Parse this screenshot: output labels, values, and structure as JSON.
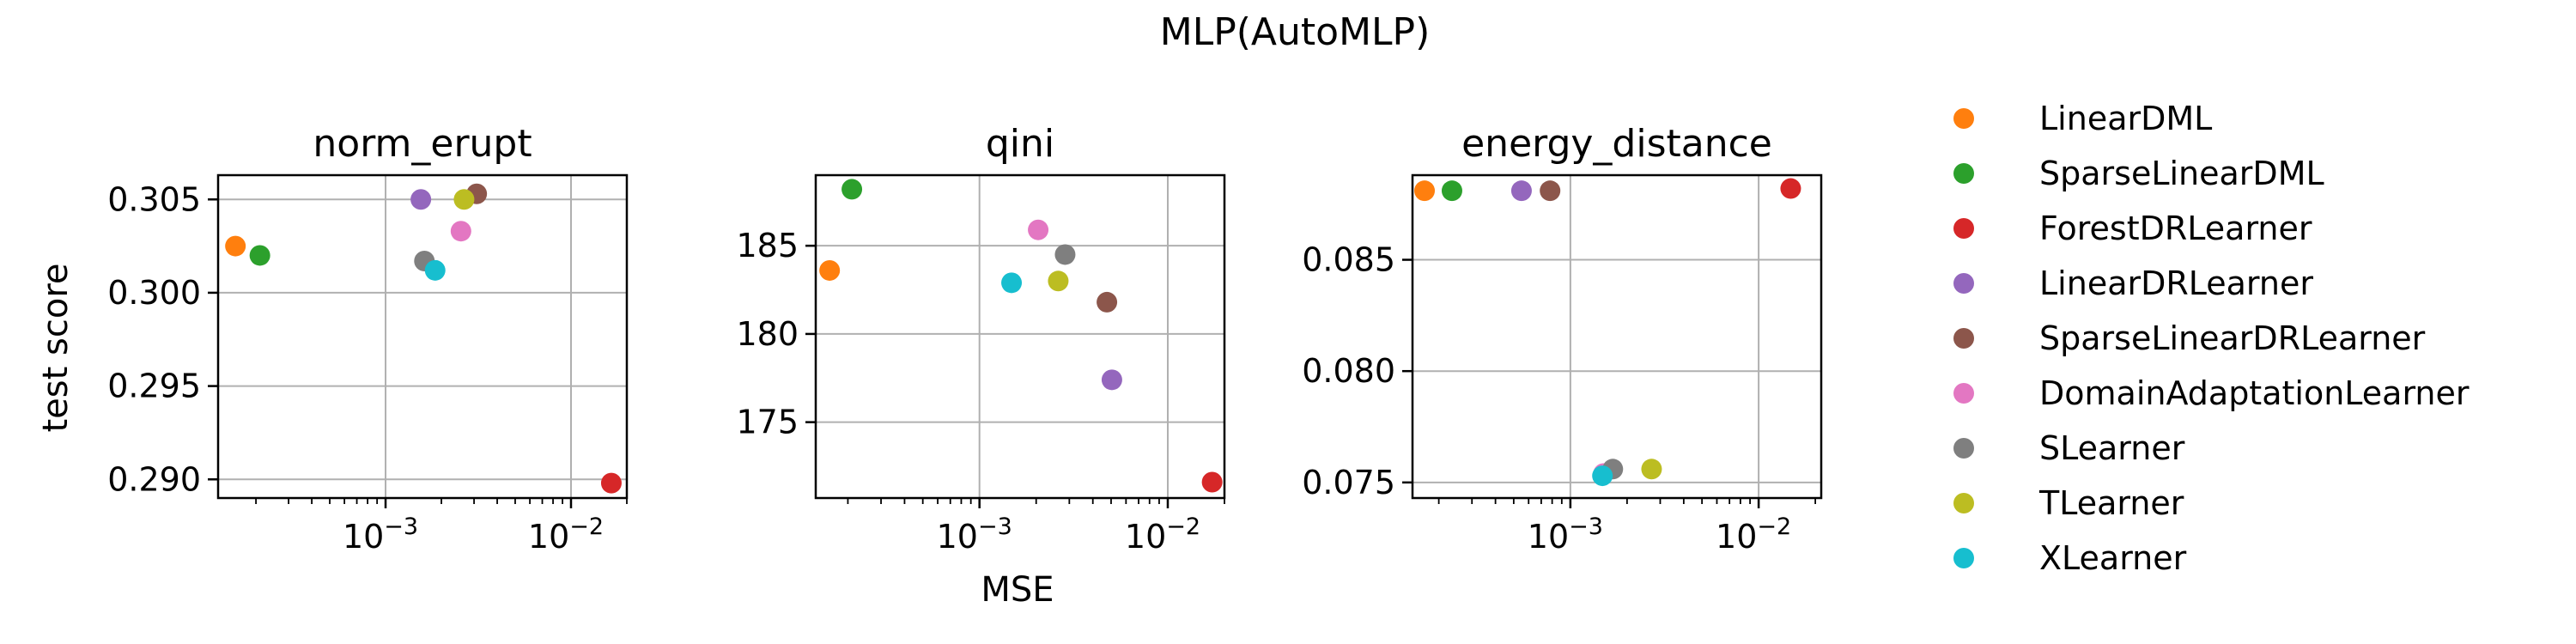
{
  "figure": {
    "suptitle": "MLP(AutoMLP)",
    "shared_xlabel": "MSE",
    "shared_ylabel": "test score"
  },
  "legend": {
    "placement": "right",
    "entries": [
      {
        "name": "LinearDML",
        "color": "#ff7f0e"
      },
      {
        "name": "SparseLinearDML",
        "color": "#2ca02c"
      },
      {
        "name": "ForestDRLearner",
        "color": "#d62728"
      },
      {
        "name": "LinearDRLearner",
        "color": "#9467bd"
      },
      {
        "name": "SparseLinearDRLearner",
        "color": "#8c564b"
      },
      {
        "name": "DomainAdaptationLearner",
        "color": "#e377c2"
      },
      {
        "name": "SLearner",
        "color": "#7f7f7f"
      },
      {
        "name": "TLearner",
        "color": "#bcbd22"
      },
      {
        "name": "XLearner",
        "color": "#17becf"
      }
    ]
  },
  "chart_data": [
    {
      "type": "scatter",
      "title": "norm_erupt",
      "xlabel": "",
      "ylabel": "test score",
      "xscale": "log",
      "xlim": [
        0.000125,
        0.02
      ],
      "ylim": [
        0.289,
        0.3063
      ],
      "xticks": [
        {
          "value": 0.001,
          "label": "10",
          "exp": "−3"
        },
        {
          "value": 0.01,
          "label": "10",
          "exp": "−2"
        }
      ],
      "yticks": [
        {
          "value": 0.29,
          "label": "0.290"
        },
        {
          "value": 0.295,
          "label": "0.295"
        },
        {
          "value": 0.3,
          "label": "0.300"
        },
        {
          "value": 0.305,
          "label": "0.305"
        }
      ],
      "grid": true,
      "points": [
        {
          "name": "LinearDML",
          "x": 0.000155,
          "y": 0.3025
        },
        {
          "name": "SparseLinearDML",
          "x": 0.00021,
          "y": 0.302
        },
        {
          "name": "ForestDRLearner",
          "x": 0.0165,
          "y": 0.2898
        },
        {
          "name": "LinearDRLearner",
          "x": 0.00155,
          "y": 0.305
        },
        {
          "name": "SparseLinearDRLearner",
          "x": 0.0031,
          "y": 0.3053
        },
        {
          "name": "DomainAdaptationLearner",
          "x": 0.00255,
          "y": 0.3033
        },
        {
          "name": "SLearner",
          "x": 0.00162,
          "y": 0.3017
        },
        {
          "name": "TLearner",
          "x": 0.00265,
          "y": 0.305
        },
        {
          "name": "XLearner",
          "x": 0.00185,
          "y": 0.3012
        }
      ]
    },
    {
      "type": "scatter",
      "title": "qini",
      "xlabel": "MSE",
      "ylabel": "",
      "xscale": "log",
      "xlim": [
        0.000135,
        0.02
      ],
      "ylim": [
        170.7,
        189
      ],
      "xticks": [
        {
          "value": 0.001,
          "label": "10",
          "exp": "−3"
        },
        {
          "value": 0.01,
          "label": "10",
          "exp": "−2"
        }
      ],
      "yticks": [
        {
          "value": 175,
          "label": "175"
        },
        {
          "value": 180,
          "label": "180"
        },
        {
          "value": 185,
          "label": "185"
        }
      ],
      "grid": true,
      "points": [
        {
          "name": "LinearDML",
          "x": 0.00016,
          "y": 183.6
        },
        {
          "name": "SparseLinearDML",
          "x": 0.00021,
          "y": 188.2
        },
        {
          "name": "ForestDRLearner",
          "x": 0.0172,
          "y": 171.6
        },
        {
          "name": "LinearDRLearner",
          "x": 0.00505,
          "y": 177.4
        },
        {
          "name": "SparseLinearDRLearner",
          "x": 0.00475,
          "y": 181.8
        },
        {
          "name": "DomainAdaptationLearner",
          "x": 0.00205,
          "y": 185.9
        },
        {
          "name": "SLearner",
          "x": 0.00285,
          "y": 184.5
        },
        {
          "name": "TLearner",
          "x": 0.00262,
          "y": 183.0
        },
        {
          "name": "XLearner",
          "x": 0.00148,
          "y": 182.9
        }
      ]
    },
    {
      "type": "scatter",
      "title": "energy_distance",
      "xlabel": "",
      "ylabel": "",
      "xscale": "log",
      "xlim": [
        0.000145,
        0.0215
      ],
      "ylim": [
        0.0743,
        0.0888
      ],
      "xticks": [
        {
          "value": 0.001,
          "label": "10",
          "exp": "−3"
        },
        {
          "value": 0.01,
          "label": "10",
          "exp": "−2"
        }
      ],
      "yticks": [
        {
          "value": 0.075,
          "label": "0.075"
        },
        {
          "value": 0.08,
          "label": "0.080"
        },
        {
          "value": 0.085,
          "label": "0.085"
        }
      ],
      "grid": true,
      "points": [
        {
          "name": "LinearDML",
          "x": 0.000168,
          "y": 0.0881
        },
        {
          "name": "SparseLinearDML",
          "x": 0.000235,
          "y": 0.0881
        },
        {
          "name": "ForestDRLearner",
          "x": 0.0148,
          "y": 0.0882
        },
        {
          "name": "LinearDRLearner",
          "x": 0.00055,
          "y": 0.0881
        },
        {
          "name": "SparseLinearDRLearner",
          "x": 0.00078,
          "y": 0.0881
        },
        {
          "name": "DomainAdaptationLearner",
          "x": 0.0015,
          "y": 0.0754
        },
        {
          "name": "SLearner",
          "x": 0.00168,
          "y": 0.0756
        },
        {
          "name": "TLearner",
          "x": 0.0027,
          "y": 0.0756
        },
        {
          "name": "XLearner",
          "x": 0.00148,
          "y": 0.0753
        }
      ]
    }
  ]
}
